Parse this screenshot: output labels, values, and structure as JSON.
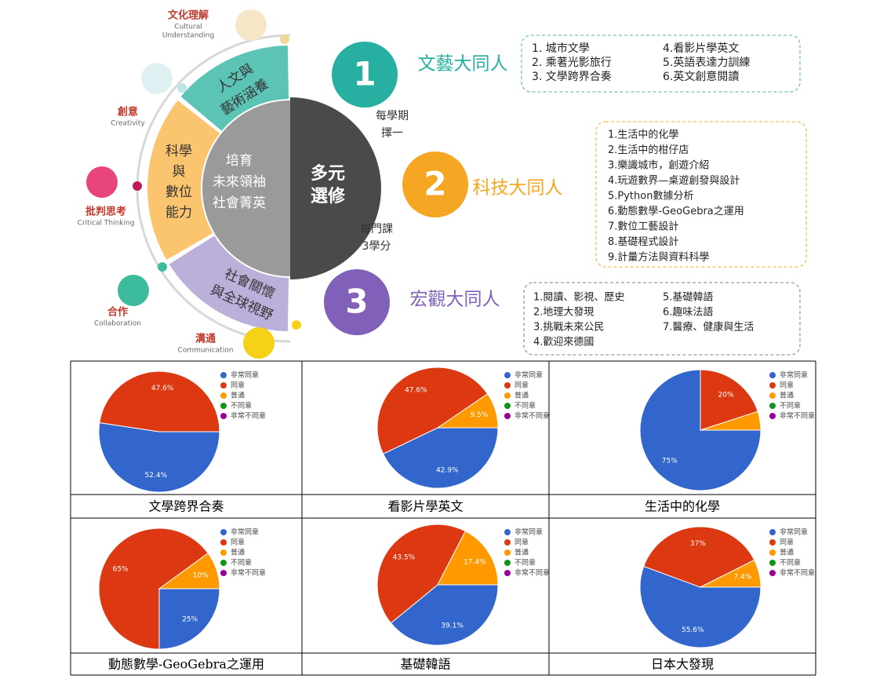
{
  "infographic": {
    "competencies": [
      {
        "zh": "文化理解",
        "en": [
          "Cultural",
          "Understanding"
        ]
      },
      {
        "zh": "創意",
        "en": [
          "Creativity"
        ]
      },
      {
        "zh": "批判思考",
        "en": [
          "Critical Thinking"
        ]
      },
      {
        "zh": "合作",
        "en": [
          "Collaboration"
        ]
      },
      {
        "zh": "溝通",
        "en": [
          "Communication"
        ]
      }
    ],
    "core": {
      "segments": [
        [
          "人文與",
          "藝術涵養"
        ],
        [
          "科學",
          "與",
          "數位",
          "能力"
        ],
        [
          "社會關懷",
          "與全球視野"
        ]
      ],
      "center": [
        "培育",
        "未來領袖",
        "社會菁英"
      ],
      "elective": [
        "多元",
        "選修"
      ],
      "note1": [
        "每學期",
        "擇一"
      ],
      "note2": [
        "每門課",
        "3學分"
      ]
    },
    "tracks": [
      {
        "number": "1",
        "name": "文藝大同人",
        "items": [
          "1. 城市文學",
          "2. 乘著光影旅行",
          "3. 文學跨界合奏",
          "4.看影片學英文",
          "5.英語表達力訓練",
          "6.英文創意閱讀"
        ]
      },
      {
        "number": "2",
        "name": "科技大同人",
        "items": [
          "1.生活中的化學",
          "2.生活中的柑仔店",
          "3.樂識城市，創遊介紹",
          "4.玩遊數界—桌遊創發與設計",
          "5.Python數據分析",
          "6.動態數學-GeoGebra之運用",
          "7.數位工藝設計",
          "8.基礎程式設計",
          "9.計量方法與資料科學"
        ]
      },
      {
        "number": "3",
        "name": "宏觀大同人",
        "items": [
          "1.閱讀、影視、歷史",
          "2.地理大發現",
          "3.挑戰未來公民",
          "4.歡迎來德國",
          "5.基礎韓語",
          "6.趣味法語",
          "7.醫療、健康與生活"
        ]
      }
    ]
  },
  "chart_data": [
    {
      "type": "pie",
      "caption": "文學跨界合奏",
      "categories": [
        "非常同意",
        "同意",
        "普通",
        "不同意",
        "非常不同意"
      ],
      "colors": [
        "#3366cc",
        "#dc3912",
        "#ff9900",
        "#109618",
        "#990099"
      ],
      "values": [
        52.4,
        47.6,
        0,
        0,
        0
      ],
      "value_labels": [
        "52.4%",
        "47.6%",
        null,
        null,
        null
      ]
    },
    {
      "type": "pie",
      "caption": "看影片學英文",
      "categories": [
        "非常同意",
        "同意",
        "普通",
        "不同意",
        "非常不同意"
      ],
      "colors": [
        "#3366cc",
        "#dc3912",
        "#ff9900",
        "#109618",
        "#990099"
      ],
      "values": [
        42.9,
        47.6,
        9.5,
        0,
        0
      ],
      "value_labels": [
        "42.9%",
        "47.6%",
        "9.5%",
        null,
        null
      ]
    },
    {
      "type": "pie",
      "caption": "生活中的化學",
      "categories": [
        "非常同意",
        "同意",
        "普通",
        "不同意",
        "非常不同意"
      ],
      "colors": [
        "#3366cc",
        "#dc3912",
        "#ff9900",
        "#109618",
        "#990099"
      ],
      "values": [
        75,
        20,
        5,
        0,
        0
      ],
      "value_labels": [
        "75%",
        "20%",
        null,
        null,
        null
      ]
    },
    {
      "type": "pie",
      "caption": "動態數學-GeoGebra之運用",
      "categories": [
        "非常同意",
        "同意",
        "普通",
        "不同意",
        "非常不同意"
      ],
      "colors": [
        "#3366cc",
        "#dc3912",
        "#ff9900",
        "#109618",
        "#990099"
      ],
      "values": [
        25,
        65,
        10,
        0,
        0
      ],
      "value_labels": [
        "25%",
        "65%",
        "10%",
        null,
        null
      ]
    },
    {
      "type": "pie",
      "caption": "基礎韓語",
      "categories": [
        "非常同意",
        "同意",
        "普通",
        "不同意",
        "非常不同意"
      ],
      "colors": [
        "#3366cc",
        "#dc3912",
        "#ff9900",
        "#109618",
        "#990099"
      ],
      "values": [
        39.1,
        43.5,
        17.4,
        0,
        0
      ],
      "value_labels": [
        "39.1%",
        "43.5%",
        "17.4%",
        null,
        null
      ]
    },
    {
      "type": "pie",
      "caption": "日本大發現",
      "categories": [
        "非常同意",
        "同意",
        "普通",
        "不同意",
        "非常不同意"
      ],
      "colors": [
        "#3366cc",
        "#dc3912",
        "#ff9900",
        "#109618",
        "#990099"
      ],
      "values": [
        55.6,
        37,
        7.4,
        0,
        0
      ],
      "value_labels": [
        "55.6%",
        "37%",
        "7.4%",
        null,
        null
      ]
    }
  ]
}
